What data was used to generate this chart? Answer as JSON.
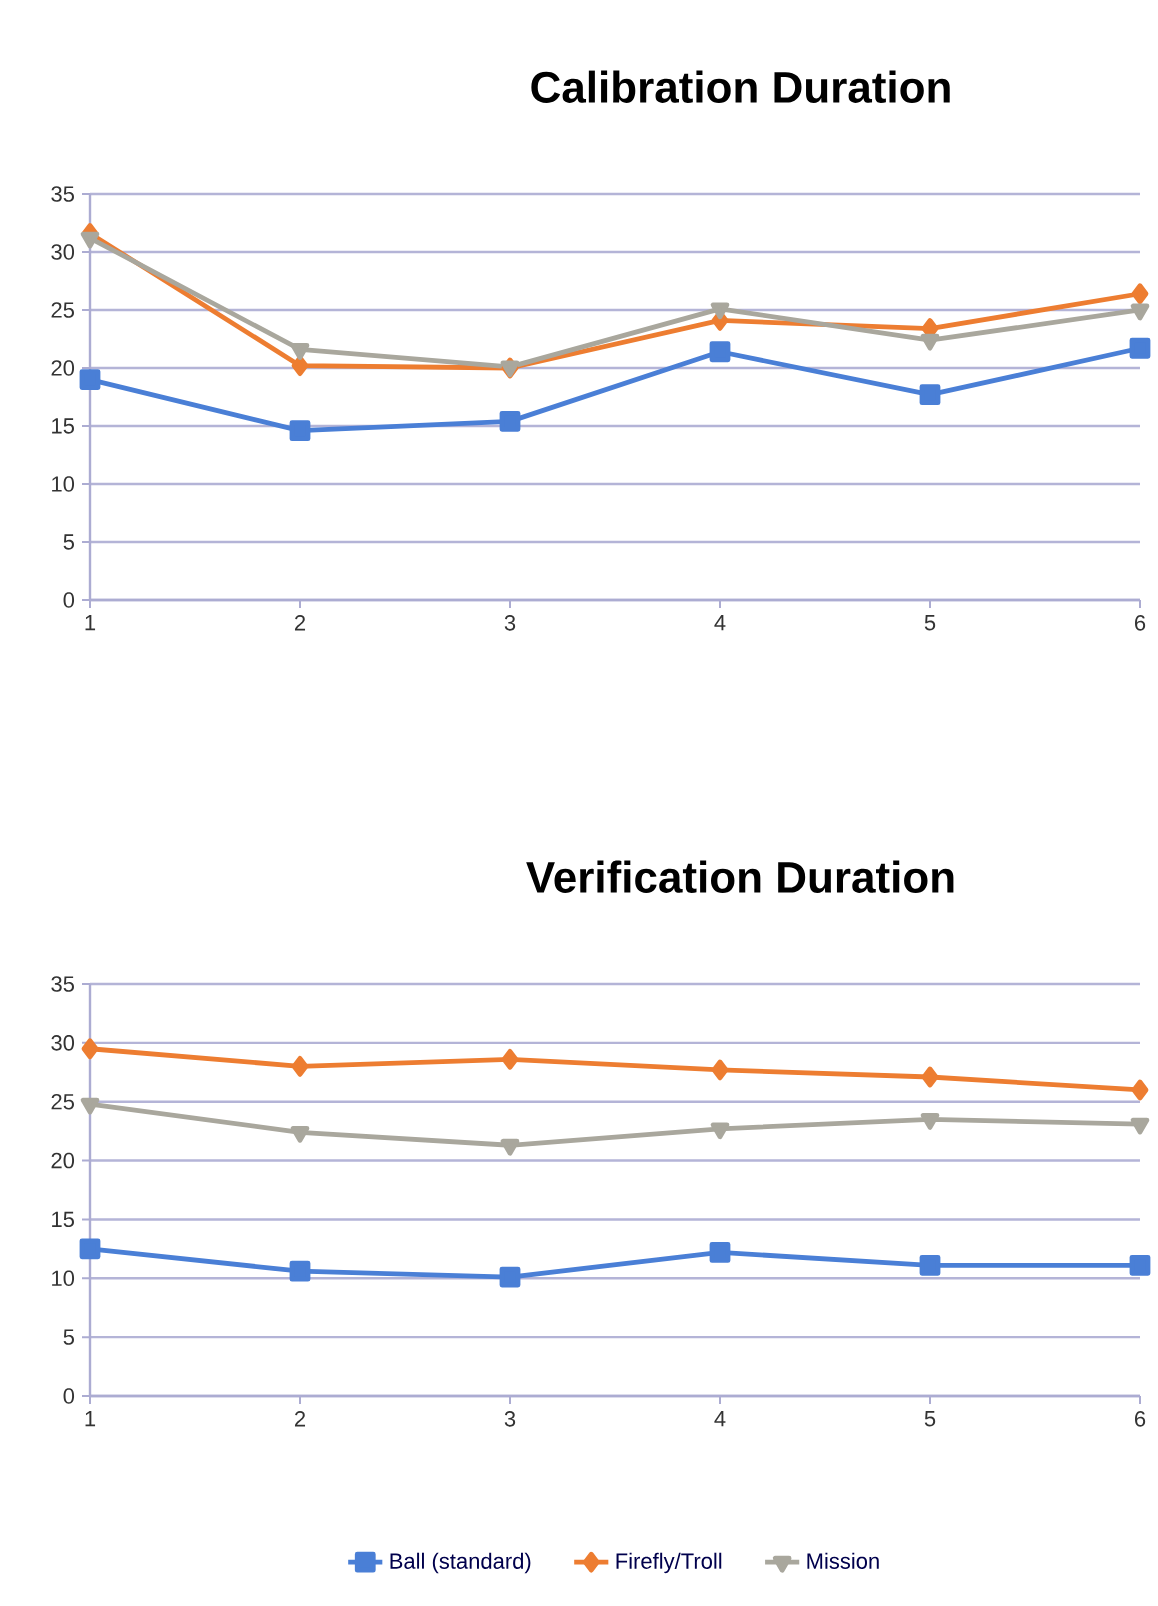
{
  "chart_data": [
    {
      "type": "line",
      "title": "Calibration Duration",
      "categories": [
        "1",
        "2",
        "3",
        "4",
        "5",
        "6"
      ],
      "ylim": [
        0,
        35
      ],
      "yticks": [
        0,
        5,
        10,
        15,
        20,
        25,
        30,
        35
      ],
      "grid": "y",
      "legend": false,
      "series": [
        {
          "color": "#4a7fd6",
          "marker": "square",
          "values": [
            19,
            14.6,
            15.4,
            21.4,
            17.7,
            21.7
          ]
        },
        {
          "color": "#ed7d31",
          "marker": "diamond",
          "values": [
            31.6,
            20.2,
            20,
            24.1,
            23.4,
            26.4
          ]
        },
        {
          "color": "#a9a79d",
          "marker": "triangle",
          "values": [
            31.2,
            21.6,
            20.1,
            25.1,
            22.4,
            25
          ]
        }
      ]
    },
    {
      "type": "line",
      "title": "Verification Duration",
      "categories": [
        "1",
        "2",
        "3",
        "4",
        "5",
        "6"
      ],
      "ylim": [
        0,
        35
      ],
      "yticks": [
        0,
        5,
        10,
        15,
        20,
        25,
        30,
        35
      ],
      "grid": "y",
      "legend": "bottom",
      "series": [
        {
          "name": "Ball (standard)",
          "color": "#4a7fd6",
          "marker": "square",
          "values": [
            12.5,
            10.6,
            10.1,
            12.2,
            11.1,
            11.1
          ]
        },
        {
          "name": "Firefly/Troll",
          "color": "#ed7d31",
          "marker": "diamond",
          "values": [
            29.5,
            28,
            28.6,
            27.7,
            27.1,
            26
          ]
        },
        {
          "name": "Mission",
          "color": "#a9a79d",
          "marker": "triangle",
          "values": [
            24.8,
            22.4,
            21.3,
            22.7,
            23.5,
            23.1
          ]
        }
      ]
    }
  ]
}
